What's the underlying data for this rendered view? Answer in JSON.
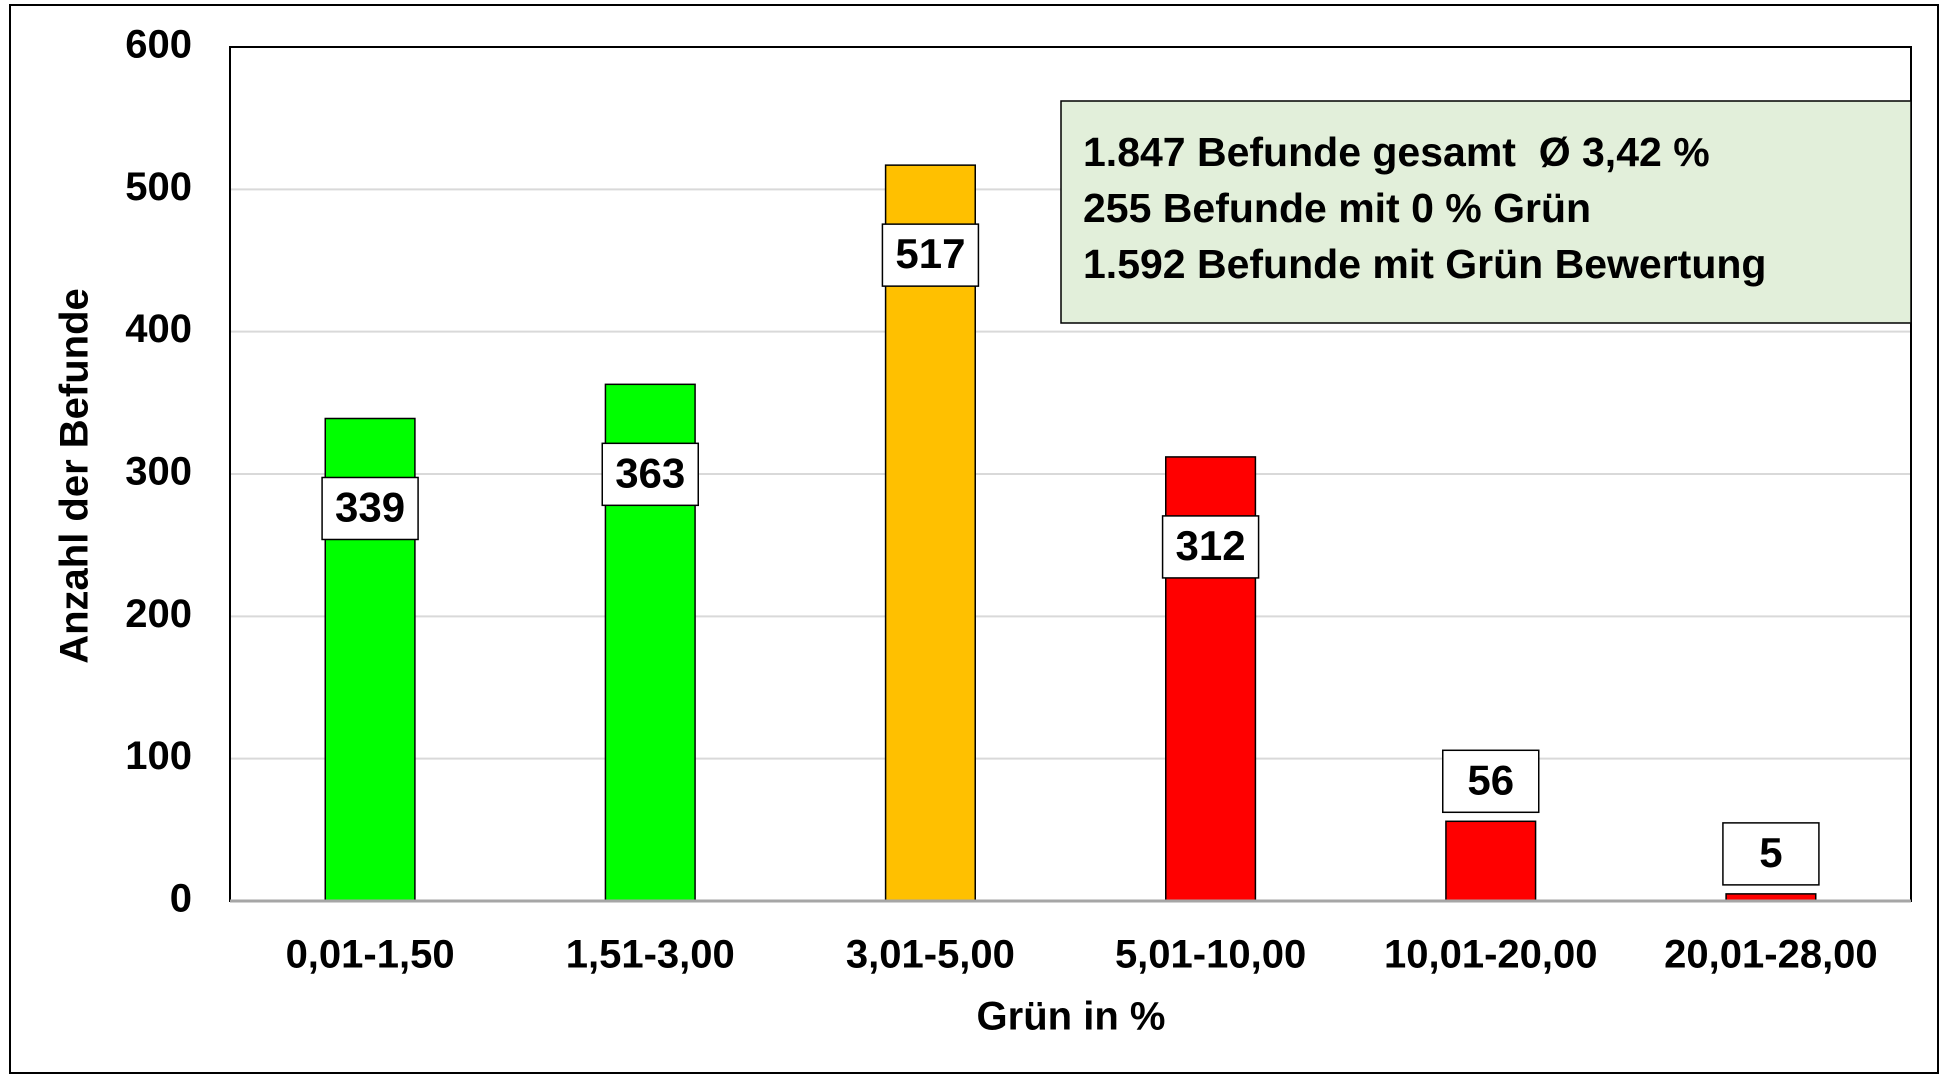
{
  "chart_data": {
    "type": "bar",
    "categories": [
      "0,01-1,50",
      "1,51-3,00",
      "3,01-5,00",
      "5,01-10,00",
      "10,01-20,00",
      "20,01-28,00"
    ],
    "values": [
      339,
      363,
      517,
      312,
      56,
      5
    ],
    "colors": [
      "#00ff00",
      "#00ff00",
      "#ffc000",
      "#ff0000",
      "#ff0000",
      "#ff0000"
    ],
    "xlabel": "Grün in %",
    "ylabel": "Anzahl der Befunde",
    "ylim": [
      0,
      600
    ],
    "yticks": [
      0,
      100,
      200,
      300,
      400,
      500,
      600
    ],
    "grid": true,
    "annotations": [
      "1.847 Befunde gesamt  Ø 3,42 %",
      "255 Befunde mit 0 % Grün",
      "1.592 Befunde mit Grün Bewertung"
    ]
  }
}
